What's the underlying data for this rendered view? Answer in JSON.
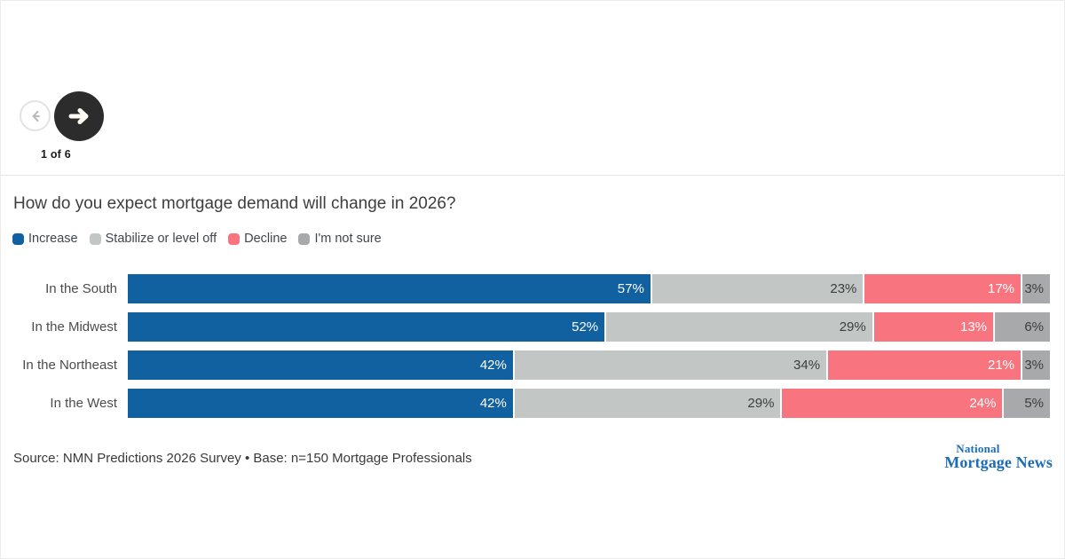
{
  "nav": {
    "position_label": "1 of 6",
    "prev_icon": "arrow-left-icon",
    "next_icon": "arrow-right-icon",
    "next_button_color": "#2d2c2c",
    "prev_arrow_color": "#b9babc"
  },
  "chart": {
    "title": "How do you expect mortgage demand will change in 2026?"
  },
  "chart_data": {
    "type": "bar",
    "orientation": "horizontal-stacked",
    "title": "How do you expect mortgage demand will change in 2026?",
    "categories": [
      "In the South",
      "In the Midwest",
      "In the Northeast",
      "In the West"
    ],
    "series": [
      {
        "name": "Increase",
        "color": "#1160a0",
        "label_color": "#ffffff",
        "values": [
          57,
          52,
          42,
          42
        ]
      },
      {
        "name": "Stabilize or level off",
        "color": "#c2c6c5",
        "label_color": "#3d3d3d",
        "values": [
          23,
          29,
          34,
          29
        ]
      },
      {
        "name": "Decline",
        "color": "#f8747e",
        "label_color": "#ffffff",
        "values": [
          17,
          13,
          21,
          24
        ]
      },
      {
        "name": "I'm not sure",
        "color": "#a7a9ab",
        "label_color": "#3d3d3d",
        "values": [
          3,
          6,
          3,
          5
        ]
      }
    ],
    "value_suffix": "%",
    "xlim": [
      0,
      100
    ],
    "grid": false,
    "legend_position": "top-left"
  },
  "footer": {
    "source": "Source: NMN Predictions 2026 Survey • Base: n=150 Mortgage Professionals",
    "logo_line1": "National",
    "logo_line2": "Mortgage News",
    "logo_color": "#1d6cb5"
  }
}
